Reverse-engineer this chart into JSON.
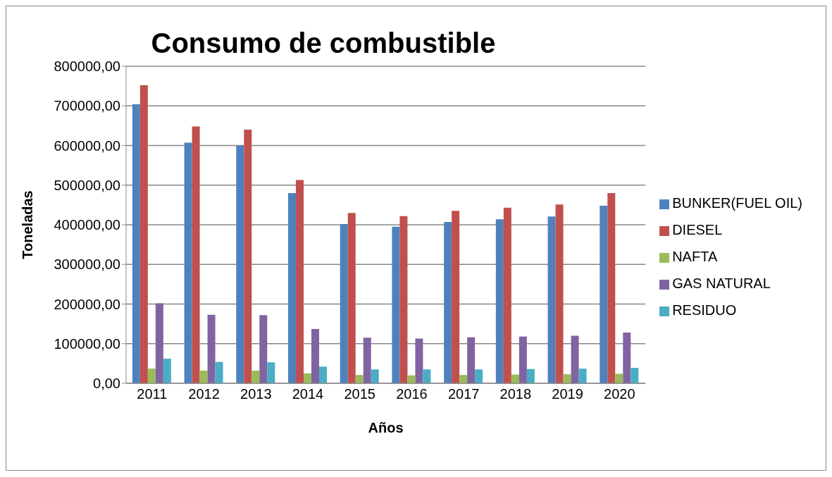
{
  "chart_data": {
    "type": "bar",
    "title": "Consumo de combustible",
    "xlabel": "Años",
    "ylabel": "Toneladas",
    "categories": [
      "2011",
      "2012",
      "2013",
      "2014",
      "2015",
      "2016",
      "2017",
      "2018",
      "2019",
      "2020"
    ],
    "series": [
      {
        "name": "BUNKER(FUEL OIL)",
        "color": "#4f81bd",
        "values": [
          704000,
          607000,
          600000,
          480000,
          402000,
          395000,
          407000,
          414000,
          421000,
          448000
        ]
      },
      {
        "name": "DIESEL",
        "color": "#c0504d",
        "values": [
          752000,
          648000,
          640000,
          513000,
          430000,
          422000,
          435000,
          443000,
          451000,
          480000
        ]
      },
      {
        "name": "NAFTA",
        "color": "#9bbb59",
        "values": [
          37000,
          32000,
          32000,
          25000,
          21000,
          20000,
          21000,
          22000,
          23000,
          24000
        ]
      },
      {
        "name": "GAS NATURAL",
        "color": "#8064a2",
        "values": [
          202000,
          173000,
          172000,
          137000,
          115000,
          113000,
          116000,
          118000,
          120000,
          128000
        ]
      },
      {
        "name": "RESIDUO",
        "color": "#4bacc6",
        "values": [
          62000,
          54000,
          53000,
          42000,
          35000,
          35000,
          35000,
          36000,
          37000,
          39000
        ]
      }
    ],
    "ylim": [
      0,
      800000
    ],
    "yticks": [
      {
        "value": 0,
        "label": "0,00"
      },
      {
        "value": 100000,
        "label": "100000,00"
      },
      {
        "value": 200000,
        "label": "200000,00"
      },
      {
        "value": 300000,
        "label": "300000,00"
      },
      {
        "value": 400000,
        "label": "400000,00"
      },
      {
        "value": 500000,
        "label": "500000,00"
      },
      {
        "value": 600000,
        "label": "600000,00"
      },
      {
        "value": 700000,
        "label": "700000,00"
      },
      {
        "value": 800000,
        "label": "800000,00"
      }
    ],
    "grid": "y",
    "legend": "right"
  }
}
